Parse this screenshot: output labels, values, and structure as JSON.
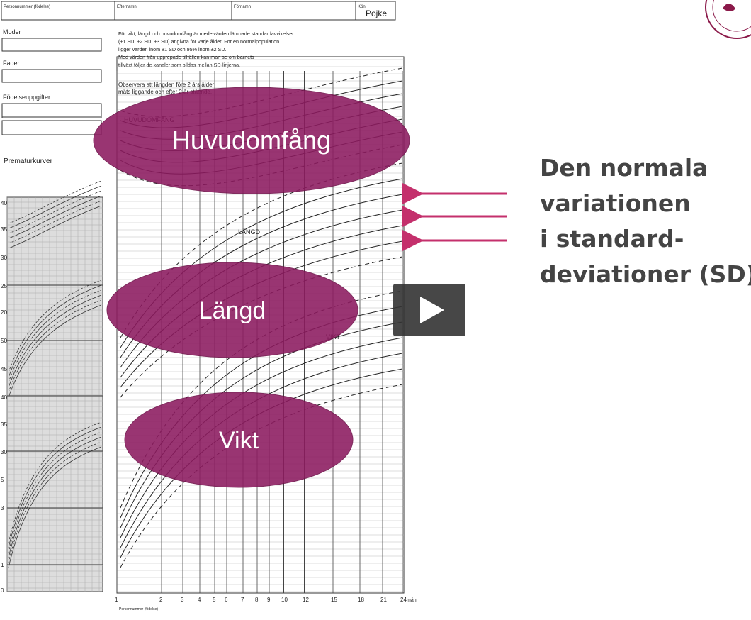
{
  "form": {
    "fields": [
      "Personnummer (födelse)",
      "Efternamn",
      "Förnamn",
      "Kön"
    ],
    "sex": "Pojke",
    "sections": [
      "Moder",
      "Fader",
      "Födelseuppgifter"
    ],
    "intro": [
      "För vikt, längd och huvudomfång är medelvärden lämnade standardavvikelser",
      "(±1 SD, ±2 SD, ±3 SD) angivna för varje ålder. För en normalpopulation",
      "ligger värden inom ±1 SD och 95% inom ±2 SD.",
      "Med värden från upprepade tillfällen kan man se om barnets",
      "tillväxt följer de kanaler som bildas mellan SD-linjerna."
    ],
    "note": [
      "Observera att längden före 2 års ålder",
      "mäts liggande och efter 2 år stående."
    ],
    "premature_title": "Prematurkurver"
  },
  "chart": {
    "labels": [
      "HUVUDOMFÅNG",
      "LÄNGD",
      "VIKT"
    ],
    "age_ticks": [
      "1",
      "2",
      "3",
      "4",
      "5",
      "6",
      "7",
      "8",
      "9",
      "10",
      "12",
      "15",
      "18",
      "21",
      "24"
    ],
    "age_unit": "mån",
    "premature_ticks": [
      "40",
      "35",
      "30",
      "25",
      "20",
      "50",
      "45",
      "40",
      "35",
      "30",
      "5",
      "3",
      "1",
      "0"
    ]
  },
  "overlays": [
    "Huvudomfång",
    "Längd",
    "Vikt"
  ],
  "caption": [
    "Den normala",
    "variationen",
    "i standard-",
    "deviationer (SD)"
  ]
}
